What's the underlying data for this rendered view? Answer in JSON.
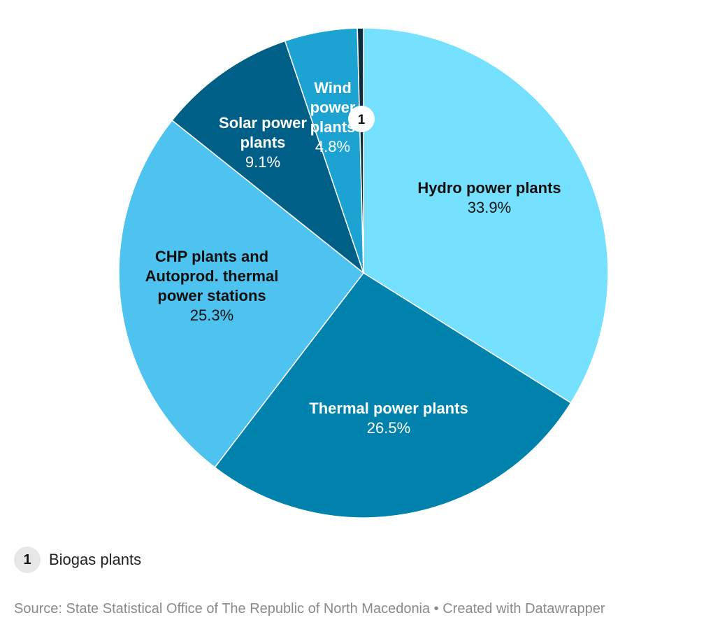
{
  "chart_data": {
    "type": "pie",
    "slices": [
      {
        "label": "Hydro power plants",
        "value": 33.9,
        "value_label": "33.9%",
        "color": "#75e1ff",
        "text_color": "#111111",
        "label_lines": [
          "Hydro power plants"
        ]
      },
      {
        "label": "Thermal power plants",
        "value": 26.5,
        "value_label": "26.5%",
        "color": "#0082ad",
        "text_color": "#ffffff",
        "label_lines": [
          "Thermal power plants"
        ]
      },
      {
        "label": "CHP plants and Autoprod. thermal power stations",
        "value": 25.3,
        "value_label": "25.3%",
        "color": "#4ec3ef",
        "text_color": "#111111",
        "label_lines": [
          "CHP plants and",
          "Autoprod. thermal",
          "power stations"
        ]
      },
      {
        "label": "Solar power plants",
        "value": 9.1,
        "value_label": "9.1%",
        "color": "#005f87",
        "text_color": "#ffffff",
        "label_lines": [
          "Solar power",
          "plants"
        ]
      },
      {
        "label": "Wind power plants",
        "value": 4.8,
        "value_label": "4.8%",
        "color": "#1ca3d2",
        "text_color": "#ffffff",
        "label_lines": [
          "Wind",
          "power",
          "plants"
        ]
      },
      {
        "label": "Biogas plants",
        "value": 0.4,
        "value_label": "",
        "color": "#0d2d3f",
        "text_color": "#111111",
        "label_lines": []
      }
    ],
    "start_angle_deg": 0,
    "direction": "clockwise",
    "marker": {
      "text": "1",
      "slice_label": "Biogas plants"
    }
  },
  "footnote": {
    "number": "1",
    "text": "Biogas plants"
  },
  "source": "Source: State Statistical Office of The Republic of North Macedonia • Created with Datawrapper"
}
